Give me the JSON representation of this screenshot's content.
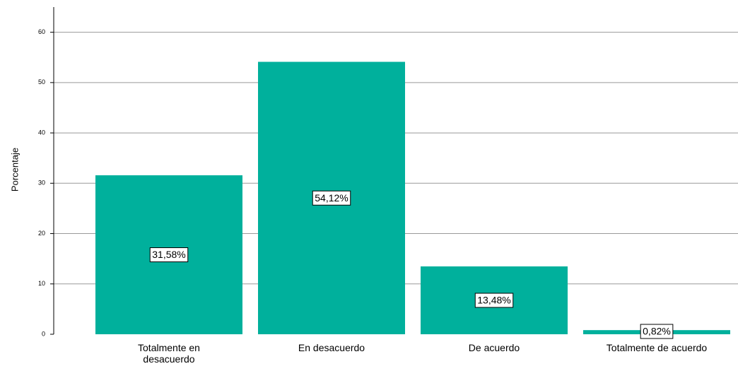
{
  "chart_data": {
    "type": "bar",
    "y_label": "Porcentaje",
    "categories": [
      "Totalmente en desacuerdo",
      "En desacuerdo",
      "De acuerdo",
      "Totalmente de acuerdo"
    ],
    "values": [
      31.58,
      54.12,
      13.48,
      0.82
    ],
    "value_labels": [
      "31,58%",
      "54,12%",
      "13,48%",
      "0,82%"
    ],
    "color": "#00b09c",
    "ylim": [
      0,
      65
    ],
    "yticks": [
      0,
      10,
      20,
      30,
      40,
      50,
      60
    ],
    "grid": true
  }
}
